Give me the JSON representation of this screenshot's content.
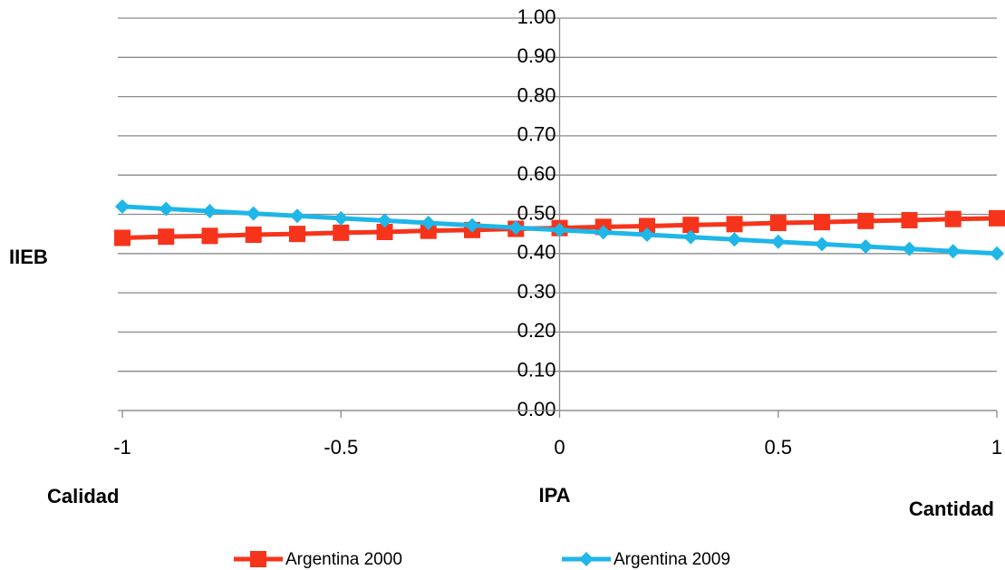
{
  "chart_data": {
    "type": "line",
    "ylabel": "IIEB",
    "xlabel": "IPA",
    "annotations": [
      "Calidad",
      "Cantidad"
    ],
    "x": [
      -1,
      -0.9,
      -0.8,
      -0.7,
      -0.6,
      -0.5,
      -0.4,
      -0.3,
      -0.2,
      -0.1,
      0,
      0.1,
      0.2,
      0.3,
      0.4,
      0.5,
      0.6,
      0.7,
      0.8,
      0.9,
      1
    ],
    "series": [
      {
        "name": "Argentina 2000",
        "color": "#f5341b",
        "marker": "square",
        "values": [
          0.44,
          0.443,
          0.445,
          0.448,
          0.45,
          0.453,
          0.455,
          0.458,
          0.46,
          0.463,
          0.465,
          0.468,
          0.47,
          0.473,
          0.475,
          0.478,
          0.48,
          0.483,
          0.485,
          0.488,
          0.49
        ]
      },
      {
        "name": "Argentina 2009",
        "color": "#1fb6e8",
        "marker": "diamond",
        "values": [
          0.52,
          0.514,
          0.508,
          0.502,
          0.496,
          0.49,
          0.484,
          0.478,
          0.472,
          0.466,
          0.46,
          0.454,
          0.448,
          0.442,
          0.436,
          0.43,
          0.424,
          0.418,
          0.412,
          0.406,
          0.4
        ]
      }
    ],
    "xlim": [
      -1,
      1
    ],
    "xticks": [
      -1,
      -0.5,
      0,
      0.5,
      1
    ],
    "ylim": [
      0,
      1
    ],
    "yticks": [
      {
        "value": 0,
        "label": "0.00"
      },
      {
        "value": 0.1,
        "label": "0.10"
      },
      {
        "value": 0.2,
        "label": "0.20"
      },
      {
        "value": 0.3,
        "label": "0.30"
      },
      {
        "value": 0.4,
        "label": "0.40"
      },
      {
        "value": 0.5,
        "label": "0.50"
      },
      {
        "value": 0.6,
        "label": "0.60"
      },
      {
        "value": 0.7,
        "label": "0.70"
      },
      {
        "value": 0.8,
        "label": "0.80"
      },
      {
        "value": 0.9,
        "label": "0.90"
      },
      {
        "value": 1,
        "label": "1.00"
      }
    ],
    "grid": true,
    "legend": "bottom"
  }
}
